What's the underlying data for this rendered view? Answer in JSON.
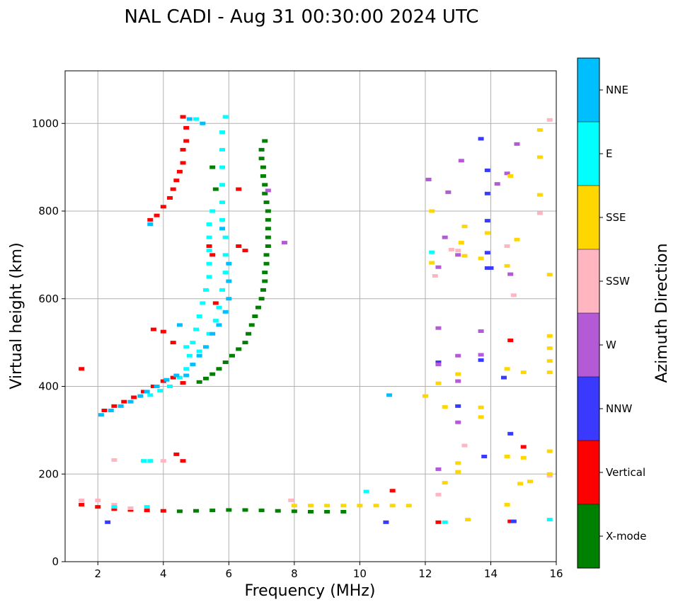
{
  "chart_data": {
    "type": "scatter",
    "title": "NAL CADI - Aug 31 00:30:00 2024 UTC",
    "xlabel": "Frequency (MHz)",
    "ylabel": "Virtual height (km)",
    "xlim": [
      1,
      16
    ],
    "ylim": [
      0,
      1120
    ],
    "xticks": [
      2,
      4,
      6,
      8,
      10,
      12,
      14,
      16
    ],
    "xtick_labels": [
      "2",
      "4",
      "6",
      "8",
      "10",
      "12",
      "14",
      "16"
    ],
    "yticks": [
      0,
      200,
      400,
      600,
      800,
      1000
    ],
    "ytick_labels": [
      "0",
      "200",
      "400",
      "600",
      "800",
      "1000"
    ],
    "grid": true,
    "colorbar": {
      "label": "Azimuth Direction",
      "categories": [
        {
          "name": "X-mode",
          "color": "#008000"
        },
        {
          "name": "Vertical",
          "color": "#ff0000"
        },
        {
          "name": "NNW",
          "color": "#3a3aff"
        },
        {
          "name": "W",
          "color": "#b55ad6"
        },
        {
          "name": "SSW",
          "color": "#ffb6c1"
        },
        {
          "name": "SSE",
          "color": "#ffd700"
        },
        {
          "name": "E",
          "color": "#00ffff"
        },
        {
          "name": "NNE",
          "color": "#00bfff"
        }
      ]
    },
    "series": [
      {
        "name": "X-mode",
        "points": [
          [
            5.1,
            410
          ],
          [
            5.3,
            418
          ],
          [
            5.5,
            428
          ],
          [
            5.7,
            440
          ],
          [
            5.9,
            455
          ],
          [
            6.1,
            470
          ],
          [
            6.3,
            485
          ],
          [
            6.5,
            500
          ],
          [
            6.6,
            520
          ],
          [
            6.7,
            540
          ],
          [
            6.8,
            560
          ],
          [
            6.9,
            580
          ],
          [
            7.0,
            600
          ],
          [
            7.05,
            620
          ],
          [
            7.1,
            640
          ],
          [
            7.1,
            660
          ],
          [
            7.15,
            680
          ],
          [
            7.15,
            700
          ],
          [
            7.2,
            720
          ],
          [
            7.2,
            740
          ],
          [
            7.2,
            760
          ],
          [
            7.2,
            780
          ],
          [
            7.2,
            800
          ],
          [
            7.15,
            820
          ],
          [
            7.1,
            840
          ],
          [
            7.1,
            860
          ],
          [
            7.05,
            880
          ],
          [
            7.05,
            900
          ],
          [
            7.0,
            920
          ],
          [
            7.0,
            940
          ],
          [
            7.1,
            960
          ],
          [
            5.6,
            850
          ],
          [
            5.5,
            900
          ],
          [
            4.5,
            115
          ],
          [
            5.0,
            116
          ],
          [
            5.5,
            117
          ],
          [
            6.0,
            118
          ],
          [
            6.5,
            118
          ],
          [
            7.0,
            117
          ],
          [
            7.5,
            116
          ],
          [
            8.0,
            115
          ],
          [
            8.5,
            114
          ],
          [
            9.0,
            114
          ],
          [
            9.5,
            114
          ]
        ]
      },
      {
        "name": "Vertical",
        "points": [
          [
            2.2,
            345
          ],
          [
            2.5,
            355
          ],
          [
            2.8,
            365
          ],
          [
            3.1,
            375
          ],
          [
            3.4,
            388
          ],
          [
            3.7,
            400
          ],
          [
            4.0,
            412
          ],
          [
            4.3,
            420
          ],
          [
            4.6,
            408
          ],
          [
            3.6,
            780
          ],
          [
            3.8,
            790
          ],
          [
            4.0,
            810
          ],
          [
            4.2,
            830
          ],
          [
            4.3,
            850
          ],
          [
            4.4,
            870
          ],
          [
            4.5,
            890
          ],
          [
            4.6,
            910
          ],
          [
            4.6,
            940
          ],
          [
            4.7,
            960
          ],
          [
            4.7,
            990
          ],
          [
            4.6,
            1015
          ],
          [
            3.7,
            530
          ],
          [
            4.0,
            525
          ],
          [
            4.3,
            500
          ],
          [
            5.4,
            720
          ],
          [
            5.5,
            700
          ],
          [
            6.3,
            720
          ],
          [
            6.3,
            850
          ],
          [
            6.5,
            710
          ],
          [
            5.6,
            590
          ],
          [
            1.5,
            440
          ],
          [
            1.5,
            130
          ],
          [
            2.0,
            125
          ],
          [
            2.5,
            120
          ],
          [
            3.0,
            118
          ],
          [
            3.5,
            117
          ],
          [
            4.0,
            116
          ],
          [
            4.4,
            245
          ],
          [
            4.6,
            230
          ],
          [
            12.4,
            90
          ],
          [
            14.6,
            505
          ],
          [
            14.6,
            92
          ],
          [
            15.0,
            262
          ],
          [
            11.0,
            162
          ]
        ]
      },
      {
        "name": "NNW",
        "points": [
          [
            13.7,
            965
          ],
          [
            13.9,
            893
          ],
          [
            13.9,
            840
          ],
          [
            13.9,
            778
          ],
          [
            13.9,
            705
          ],
          [
            13.9,
            670
          ],
          [
            12.4,
            455
          ],
          [
            13.7,
            460
          ],
          [
            13.0,
            355
          ],
          [
            14.4,
            420
          ],
          [
            14.6,
            292
          ],
          [
            13.8,
            240
          ],
          [
            10.8,
            90
          ],
          [
            14.7,
            92
          ],
          [
            2.3,
            90
          ],
          [
            14.0,
            670
          ]
        ]
      },
      {
        "name": "W",
        "points": [
          [
            12.7,
            843
          ],
          [
            13.1,
            915
          ],
          [
            14.2,
            862
          ],
          [
            14.5,
            886
          ],
          [
            14.8,
            953
          ],
          [
            12.6,
            740
          ],
          [
            13.0,
            700
          ],
          [
            12.4,
            672
          ],
          [
            14.6,
            656
          ],
          [
            12.4,
            533
          ],
          [
            13.0,
            470
          ],
          [
            13.7,
            526
          ],
          [
            13.7,
            472
          ],
          [
            13.0,
            412
          ],
          [
            13.0,
            318
          ],
          [
            12.4,
            211
          ],
          [
            7.2,
            847
          ],
          [
            7.7,
            728
          ],
          [
            12.1,
            872
          ],
          [
            12.4,
            450
          ]
        ]
      },
      {
        "name": "SSW",
        "points": [
          [
            15.8,
            1008
          ],
          [
            15.5,
            795
          ],
          [
            14.5,
            720
          ],
          [
            14.7,
            608
          ],
          [
            12.8,
            712
          ],
          [
            13.0,
            710
          ],
          [
            12.3,
            652
          ],
          [
            13.2,
            265
          ],
          [
            12.4,
            153
          ],
          [
            2.5,
            232
          ],
          [
            4.0,
            230
          ],
          [
            1.5,
            140
          ],
          [
            2.0,
            140
          ],
          [
            2.5,
            130
          ],
          [
            3.0,
            122
          ],
          [
            7.9,
            140
          ],
          [
            15.8,
            198
          ],
          [
            15.8,
            196
          ]
        ]
      },
      {
        "name": "SSE",
        "points": [
          [
            15.5,
            985
          ],
          [
            15.5,
            923
          ],
          [
            15.5,
            837
          ],
          [
            14.8,
            735
          ],
          [
            14.6,
            880
          ],
          [
            13.2,
            765
          ],
          [
            13.1,
            728
          ],
          [
            13.2,
            698
          ],
          [
            13.7,
            692
          ],
          [
            13.9,
            750
          ],
          [
            12.2,
            800
          ],
          [
            12.2,
            682
          ],
          [
            14.5,
            675
          ],
          [
            15.8,
            655
          ],
          [
            15.8,
            515
          ],
          [
            15.8,
            487
          ],
          [
            15.8,
            458
          ],
          [
            15.8,
            432
          ],
          [
            15.0,
            432
          ],
          [
            14.5,
            440
          ],
          [
            13.0,
            428
          ],
          [
            12.4,
            407
          ],
          [
            12.6,
            353
          ],
          [
            13.0,
            225
          ],
          [
            13.0,
            205
          ],
          [
            12.6,
            180
          ],
          [
            13.7,
            352
          ],
          [
            13.7,
            330
          ],
          [
            14.5,
            240
          ],
          [
            15.0,
            237
          ],
          [
            15.8,
            252
          ],
          [
            14.9,
            178
          ],
          [
            14.5,
            130
          ],
          [
            15.2,
            183
          ],
          [
            12.0,
            378
          ],
          [
            8.0,
            128
          ],
          [
            8.5,
            128
          ],
          [
            9.0,
            128
          ],
          [
            9.5,
            128
          ],
          [
            10.0,
            128
          ],
          [
            10.5,
            128
          ],
          [
            11.0,
            128
          ],
          [
            11.5,
            128
          ],
          [
            13.3,
            96
          ],
          [
            15.8,
            200
          ]
        ]
      },
      {
        "name": "E",
        "points": [
          [
            3.6,
            380
          ],
          [
            3.9,
            390
          ],
          [
            4.2,
            400
          ],
          [
            4.5,
            420
          ],
          [
            4.7,
            440
          ],
          [
            4.8,
            470
          ],
          [
            4.9,
            500
          ],
          [
            5.0,
            530
          ],
          [
            5.1,
            560
          ],
          [
            5.2,
            590
          ],
          [
            5.3,
            620
          ],
          [
            5.4,
            650
          ],
          [
            5.4,
            680
          ],
          [
            5.4,
            710
          ],
          [
            5.4,
            740
          ],
          [
            5.4,
            770
          ],
          [
            5.5,
            800
          ],
          [
            4.7,
            490
          ],
          [
            5.1,
            480
          ],
          [
            5.4,
            520
          ],
          [
            5.6,
            550
          ],
          [
            5.7,
            580
          ],
          [
            5.8,
            620
          ],
          [
            5.9,
            660
          ],
          [
            5.9,
            700
          ],
          [
            5.9,
            740
          ],
          [
            5.8,
            780
          ],
          [
            5.8,
            820
          ],
          [
            5.8,
            860
          ],
          [
            5.8,
            900
          ],
          [
            5.8,
            940
          ],
          [
            5.8,
            980
          ],
          [
            5.9,
            1015
          ],
          [
            5.0,
            1010
          ],
          [
            3.4,
            230
          ],
          [
            3.6,
            230
          ],
          [
            2.5,
            125
          ],
          [
            3.5,
            125
          ],
          [
            10.2,
            160
          ],
          [
            12.2,
            706
          ],
          [
            12.6,
            90
          ],
          [
            15.8,
            96
          ]
        ]
      },
      {
        "name": "NNE",
        "points": [
          [
            2.1,
            335
          ],
          [
            2.4,
            345
          ],
          [
            2.7,
            355
          ],
          [
            3.0,
            365
          ],
          [
            3.3,
            378
          ],
          [
            3.5,
            388
          ],
          [
            3.8,
            400
          ],
          [
            4.1,
            415
          ],
          [
            4.4,
            425
          ],
          [
            3.6,
            770
          ],
          [
            4.7,
            425
          ],
          [
            4.9,
            450
          ],
          [
            5.1,
            470
          ],
          [
            5.3,
            490
          ],
          [
            5.5,
            520
          ],
          [
            5.7,
            540
          ],
          [
            5.9,
            570
          ],
          [
            6.0,
            600
          ],
          [
            6.0,
            640
          ],
          [
            6.0,
            680
          ],
          [
            5.8,
            760
          ],
          [
            4.5,
            540
          ],
          [
            4.8,
            1010
          ],
          [
            5.2,
            1000
          ],
          [
            10.9,
            380
          ]
        ]
      }
    ]
  }
}
